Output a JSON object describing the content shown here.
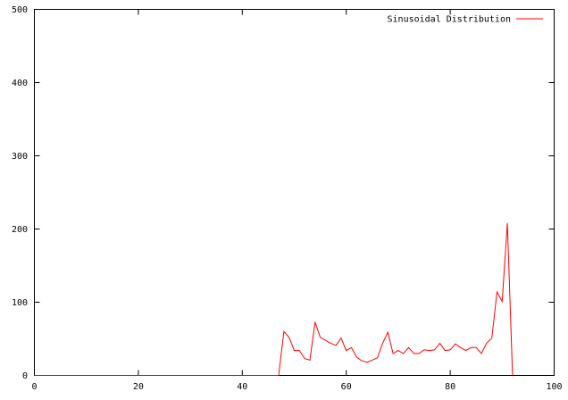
{
  "chart_data": {
    "type": "line",
    "title": "",
    "xlabel": "",
    "ylabel": "",
    "xlim": [
      0,
      100
    ],
    "ylim": [
      0,
      500
    ],
    "grid": false,
    "legend_position": "top-right",
    "x_ticks": [
      0,
      20,
      40,
      60,
      80,
      100
    ],
    "y_ticks": [
      0,
      100,
      200,
      300,
      400,
      500
    ],
    "x_tick_labels": [
      "0",
      "20",
      "40",
      "60",
      "80",
      "100"
    ],
    "y_tick_labels": [
      "0",
      "100",
      "200",
      "300",
      "400",
      "500"
    ],
    "series": [
      {
        "name": "Sinusoidal Distribution",
        "color": "#ff0000",
        "x": [
          0,
          47,
          48,
          49,
          50,
          51,
          52,
          53,
          54,
          55,
          56,
          57,
          58,
          59,
          60,
          61,
          62,
          63,
          64,
          65,
          66,
          67,
          68,
          69,
          70,
          71,
          72,
          73,
          74,
          75,
          76,
          77,
          78,
          79,
          80,
          81,
          82,
          83,
          84,
          85,
          86,
          87,
          88,
          89,
          90,
          91,
          92
        ],
        "y": [
          0,
          0,
          60,
          52,
          34,
          34,
          23,
          21,
          73,
          52,
          48,
          44,
          41,
          51,
          34,
          38,
          25,
          20,
          18,
          21,
          24,
          44,
          59,
          30,
          34,
          30,
          38,
          30,
          30,
          35,
          34,
          35,
          44,
          34,
          35,
          43,
          38,
          34,
          38,
          38,
          30,
          44,
          51,
          114,
          101,
          208,
          0
        ]
      }
    ]
  }
}
